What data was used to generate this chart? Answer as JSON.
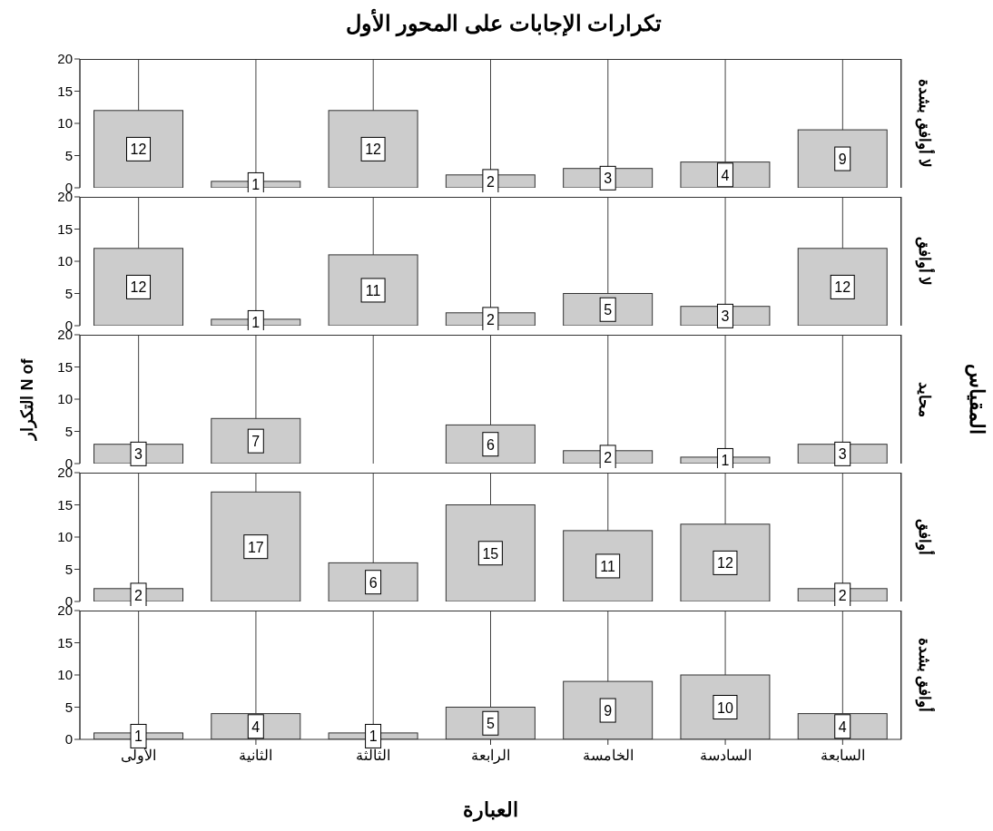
{
  "chart_data": [
    {
      "type": "bar",
      "title": "تكرارات الإجابات على المحور الأول",
      "y2label": "لا أوافق بشدة",
      "values": [
        12,
        1,
        12,
        2,
        3,
        4,
        9
      ],
      "color": "#cccccc",
      "ylim": [
        0,
        20
      ],
      "yticks": [
        0,
        5,
        10,
        15,
        20
      ],
      "grid": "x",
      "data_labels": true,
      "tick_labels": "y"
    },
    {
      "type": "bar",
      "y2label": "لا أوافق",
      "values": [
        12,
        1,
        11,
        2,
        5,
        3,
        12
      ],
      "color": "#cccccc",
      "ylim": [
        0,
        20
      ],
      "yticks": [
        0,
        5,
        10,
        15,
        20
      ],
      "grid": "x",
      "data_labels": true,
      "tick_labels": "y"
    },
    {
      "type": "bar",
      "y2label": "محايد",
      "ylabel": "N of التكرار",
      "annotations": [
        "المقياس"
      ],
      "values": [
        3,
        7,
        null,
        6,
        2,
        1,
        3
      ],
      "color": "#cccccc",
      "ylim": [
        0,
        20
      ],
      "yticks": [
        0,
        5,
        10,
        15,
        20
      ],
      "grid": "x",
      "data_labels": true,
      "tick_labels": "y"
    },
    {
      "type": "bar",
      "y2label": "أوافق",
      "values": [
        2,
        17,
        6,
        15,
        11,
        12,
        2
      ],
      "color": "#cccccc",
      "ylim": [
        0,
        20
      ],
      "yticks": [
        0,
        5,
        10,
        15,
        20
      ],
      "grid": "x",
      "data_labels": true,
      "tick_labels": "y"
    },
    {
      "type": "bar",
      "y2label": "أوافق بشدة",
      "xlabel": "العبارة",
      "categories": [
        "الأولى",
        "الثانية",
        "الثالثة",
        "الرابعة",
        "الخامسة",
        "السادسة",
        "السابعة"
      ],
      "values": [
        1,
        4,
        1,
        5,
        9,
        10,
        4
      ],
      "color": "#cccccc",
      "ylim": [
        0,
        20
      ],
      "yticks": [
        0,
        5,
        10,
        15,
        20
      ],
      "grid": "x",
      "data_labels": true
    }
  ]
}
